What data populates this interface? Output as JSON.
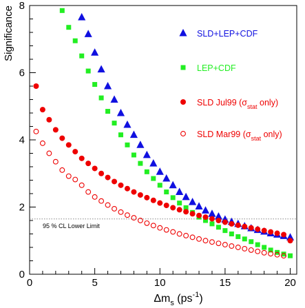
{
  "chart_data": {
    "type": "scatter",
    "xlabel_main": "Δm",
    "xlabel_sub": "s",
    "xlabel_unit_open": " (ps",
    "xlabel_unit_sup": "-1",
    "xlabel_unit_close": ")",
    "ylabel": "Significance",
    "xlim": [
      0,
      20.5
    ],
    "ylim": [
      0,
      8
    ],
    "xticks": [
      0,
      5,
      10,
      15,
      20
    ],
    "yticks": [
      0,
      2,
      4,
      6,
      8
    ],
    "grid": false,
    "legend_position": "right",
    "reference_line": {
      "y": 1.645,
      "label": "95 % CL Lower Limit",
      "color": "#888888"
    },
    "series": [
      {
        "name": "SLD+LEP+CDF",
        "name_parts": [
          "SLD+LEP+CDF"
        ],
        "marker": "triangle",
        "color": "#1010e0",
        "x": [
          4,
          4.5,
          5,
          5.5,
          6,
          6.5,
          7,
          7.5,
          8,
          8.5,
          9,
          9.5,
          10,
          10.5,
          11,
          11.5,
          12,
          12.5,
          13,
          13.5,
          14,
          14.5,
          15,
          15.5,
          16,
          16.5,
          17,
          17.5,
          18,
          18.5,
          19,
          19.5,
          20
        ],
        "values": [
          7.65,
          7.15,
          6.6,
          6.1,
          5.6,
          5.2,
          4.8,
          4.45,
          4.15,
          3.85,
          3.55,
          3.3,
          3.05,
          2.85,
          2.65,
          2.45,
          2.3,
          2.15,
          2.02,
          1.9,
          1.8,
          1.72,
          1.63,
          1.56,
          1.5,
          1.43,
          1.37,
          1.32,
          1.27,
          1.22,
          1.18,
          1.14,
          1.1
        ]
      },
      {
        "name": "LEP+CDF",
        "name_parts": [
          "LEP+CDF"
        ],
        "marker": "square",
        "color": "#22ee22",
        "x": [
          2.5,
          3,
          3.5,
          4,
          4.5,
          5,
          5.5,
          6,
          6.5,
          7,
          7.5,
          8,
          8.5,
          9,
          9.5,
          10,
          10.5,
          11,
          11.5,
          12,
          12.5,
          13,
          13.5,
          14,
          14.5,
          15,
          15.5,
          16,
          16.5,
          17,
          17.5,
          18,
          18.5,
          19,
          19.5,
          20
        ],
        "values": [
          7.85,
          7.35,
          6.95,
          6.5,
          6.05,
          5.65,
          5.25,
          4.85,
          4.5,
          4.15,
          3.85,
          3.55,
          3.3,
          3.05,
          2.85,
          2.65,
          2.45,
          2.28,
          2.12,
          1.98,
          1.84,
          1.7,
          1.6,
          1.5,
          1.4,
          1.3,
          1.2,
          1.12,
          1.05,
          0.97,
          0.88,
          0.8,
          0.72,
          0.65,
          0.6,
          0.55
        ]
      },
      {
        "name": "SLD Jul99 (σstat only)",
        "name_parts": [
          "SLD Jul99 (σ",
          "stat",
          " only)"
        ],
        "marker": "circle",
        "color": "#ee0000",
        "x": [
          0.5,
          1,
          1.5,
          2,
          2.5,
          3,
          3.5,
          4,
          4.5,
          5,
          5.5,
          6,
          6.5,
          7,
          7.5,
          8,
          8.5,
          9,
          9.5,
          10,
          10.5,
          11,
          11.5,
          12,
          12.5,
          13,
          13.5,
          14,
          14.5,
          15,
          15.5,
          16,
          16.5,
          17,
          17.5,
          18,
          18.5,
          19,
          19.5,
          20
        ],
        "values": [
          5.6,
          4.9,
          4.6,
          4.3,
          4.05,
          3.85,
          3.65,
          3.45,
          3.3,
          3.15,
          3.0,
          2.88,
          2.76,
          2.65,
          2.55,
          2.45,
          2.36,
          2.28,
          2.2,
          2.12,
          2.05,
          1.98,
          1.92,
          1.86,
          1.8,
          1.75,
          1.7,
          1.65,
          1.6,
          1.55,
          1.5,
          1.46,
          1.42,
          1.38,
          1.34,
          1.3,
          1.26,
          1.22,
          1.18,
          1.0
        ]
      },
      {
        "name": "SLD Mar99 (σstat only)",
        "name_parts": [
          "SLD Mar99 (σ",
          "stat",
          " only)"
        ],
        "marker": "open-circle",
        "color": "#ee0000",
        "x": [
          0.5,
          1,
          1.5,
          2,
          2.5,
          3,
          3.5,
          4,
          4.5,
          5,
          5.5,
          6,
          6.5,
          7,
          7.5,
          8,
          8.5,
          9,
          9.5,
          10,
          10.5,
          11,
          11.5,
          12,
          12.5,
          13,
          13.5,
          14,
          14.5,
          15,
          15.5,
          16,
          16.5,
          17,
          17.5,
          18,
          18.5,
          19,
          19.5
        ],
        "values": [
          4.25,
          3.9,
          3.6,
          3.35,
          3.1,
          2.92,
          2.82,
          2.65,
          2.45,
          2.3,
          2.18,
          2.06,
          1.95,
          1.85,
          1.76,
          1.68,
          1.6,
          1.52,
          1.45,
          1.38,
          1.32,
          1.26,
          1.2,
          1.15,
          1.1,
          1.05,
          1.0,
          0.96,
          0.92,
          0.88,
          0.84,
          0.8,
          0.76,
          0.72,
          0.68,
          0.64,
          0.61,
          0.58,
          0.55
        ]
      }
    ]
  }
}
